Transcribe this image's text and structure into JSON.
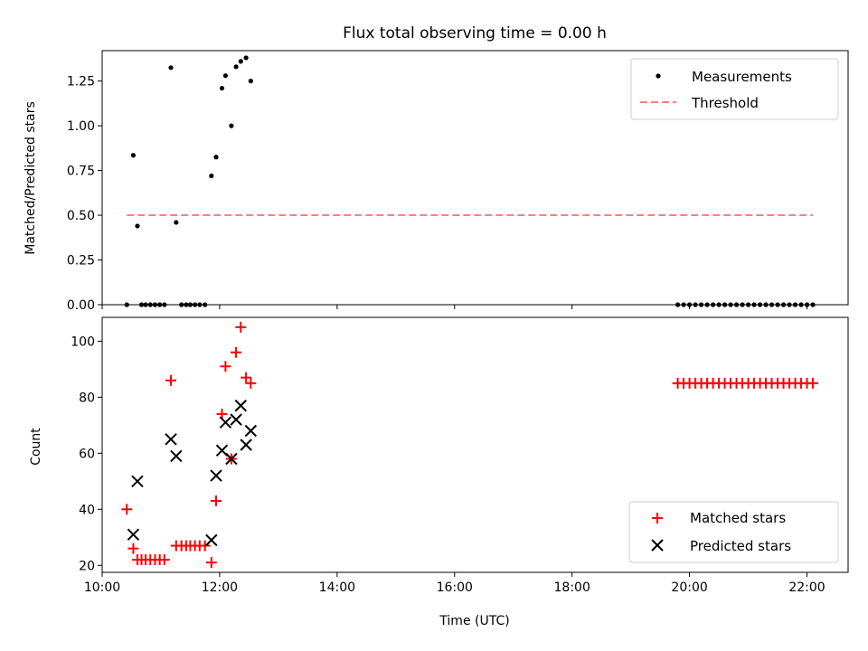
{
  "chart_data": [
    {
      "type": "scatter",
      "title": "Flux total observing time = 0.00 h",
      "xlabel": "",
      "ylabel": "Matched/Predicted stars",
      "xlim_hours": [
        10.0,
        22.7
      ],
      "ylim": [
        0,
        1.42
      ],
      "yticks": [
        0.0,
        0.25,
        0.5,
        0.75,
        1.0,
        1.25
      ],
      "ytick_labels": [
        "0.00",
        "0.25",
        "0.50",
        "0.75",
        "1.00",
        "1.25"
      ],
      "grid": false,
      "legend_position": "top-right",
      "series": [
        {
          "name": "Measurements",
          "kind": "dot",
          "color": "#000000",
          "points": [
            [
              10.42,
              0.0
            ],
            [
              10.53,
              0.835
            ],
            [
              10.6,
              0.44
            ],
            [
              10.67,
              0.0
            ],
            [
              10.74,
              0.0
            ],
            [
              10.82,
              0.0
            ],
            [
              10.9,
              0.0
            ],
            [
              10.98,
              0.0
            ],
            [
              11.06,
              0.0
            ],
            [
              11.17,
              1.325
            ],
            [
              11.26,
              0.46
            ],
            [
              11.35,
              0.0
            ],
            [
              11.43,
              0.0
            ],
            [
              11.5,
              0.0
            ],
            [
              11.58,
              0.0
            ],
            [
              11.66,
              0.0
            ],
            [
              11.75,
              0.0
            ],
            [
              11.86,
              0.72
            ],
            [
              11.94,
              0.825
            ],
            [
              12.04,
              1.21
            ],
            [
              12.1,
              1.28
            ],
            [
              12.2,
              1.0
            ],
            [
              12.28,
              1.33
            ],
            [
              12.36,
              1.36
            ],
            [
              12.45,
              1.38
            ],
            [
              12.53,
              1.25
            ],
            [
              19.8,
              0.0
            ],
            [
              19.9,
              0.0
            ],
            [
              20.0,
              0.0
            ],
            [
              20.1,
              0.0
            ],
            [
              20.2,
              0.0
            ],
            [
              20.3,
              0.0
            ],
            [
              20.4,
              0.0
            ],
            [
              20.5,
              0.0
            ],
            [
              20.6,
              0.0
            ],
            [
              20.7,
              0.0
            ],
            [
              20.8,
              0.0
            ],
            [
              20.9,
              0.0
            ],
            [
              21.0,
              0.0
            ],
            [
              21.1,
              0.0
            ],
            [
              21.2,
              0.0
            ],
            [
              21.3,
              0.0
            ],
            [
              21.4,
              0.0
            ],
            [
              21.5,
              0.0
            ],
            [
              21.6,
              0.0
            ],
            [
              21.7,
              0.0
            ],
            [
              21.8,
              0.0
            ],
            [
              21.9,
              0.0
            ],
            [
              22.0,
              0.0
            ],
            [
              22.1,
              0.0
            ]
          ]
        },
        {
          "name": "Threshold",
          "kind": "dashed-line",
          "color": "#ff7f7f",
          "points": [
            [
              10.42,
              0.5
            ],
            [
              22.1,
              0.5
            ]
          ]
        }
      ]
    },
    {
      "type": "scatter",
      "title": "",
      "xlabel": "Time (UTC)",
      "ylabel": "Count",
      "xlim_hours": [
        10.0,
        22.7
      ],
      "ylim": [
        17.5,
        108.5
      ],
      "yticks": [
        20,
        40,
        60,
        80,
        100
      ],
      "ytick_labels": [
        "20",
        "40",
        "60",
        "80",
        "100"
      ],
      "xticks_hours": [
        10,
        12,
        14,
        16,
        18,
        20,
        22
      ],
      "xtick_labels": [
        "10:00",
        "12:00",
        "14:00",
        "16:00",
        "18:00",
        "20:00",
        "22:00"
      ],
      "grid": false,
      "legend_position": "bottom-right",
      "series": [
        {
          "name": "Matched stars",
          "kind": "plus",
          "color": "#ff0000",
          "points": [
            [
              10.42,
              40
            ],
            [
              10.53,
              26
            ],
            [
              10.6,
              22
            ],
            [
              10.67,
              22
            ],
            [
              10.74,
              22
            ],
            [
              10.82,
              22
            ],
            [
              10.9,
              22
            ],
            [
              10.98,
              22
            ],
            [
              11.06,
              22
            ],
            [
              11.17,
              86
            ],
            [
              11.26,
              27
            ],
            [
              11.35,
              27
            ],
            [
              11.43,
              27
            ],
            [
              11.5,
              27
            ],
            [
              11.58,
              27
            ],
            [
              11.66,
              27
            ],
            [
              11.75,
              27
            ],
            [
              11.86,
              21
            ],
            [
              11.94,
              43
            ],
            [
              12.04,
              74
            ],
            [
              12.1,
              91
            ],
            [
              12.2,
              58
            ],
            [
              12.28,
              96
            ],
            [
              12.36,
              105
            ],
            [
              12.45,
              87
            ],
            [
              12.53,
              85
            ],
            [
              19.8,
              85
            ],
            [
              19.9,
              85
            ],
            [
              20.0,
              85
            ],
            [
              20.1,
              85
            ],
            [
              20.2,
              85
            ],
            [
              20.3,
              85
            ],
            [
              20.4,
              85
            ],
            [
              20.5,
              85
            ],
            [
              20.6,
              85
            ],
            [
              20.7,
              85
            ],
            [
              20.8,
              85
            ],
            [
              20.9,
              85
            ],
            [
              21.0,
              85
            ],
            [
              21.1,
              85
            ],
            [
              21.2,
              85
            ],
            [
              21.3,
              85
            ],
            [
              21.4,
              85
            ],
            [
              21.5,
              85
            ],
            [
              21.6,
              85
            ],
            [
              21.7,
              85
            ],
            [
              21.8,
              85
            ],
            [
              21.9,
              85
            ],
            [
              22.0,
              85
            ],
            [
              22.1,
              85
            ]
          ]
        },
        {
          "name": "Predicted stars",
          "kind": "x",
          "color": "#000000",
          "points": [
            [
              10.53,
              31
            ],
            [
              10.6,
              50
            ],
            [
              11.17,
              65
            ],
            [
              11.26,
              59
            ],
            [
              11.86,
              29
            ],
            [
              11.94,
              52
            ],
            [
              12.04,
              61
            ],
            [
              12.1,
              71
            ],
            [
              12.2,
              58
            ],
            [
              12.28,
              72
            ],
            [
              12.36,
              77
            ],
            [
              12.45,
              63
            ],
            [
              12.53,
              68
            ]
          ]
        }
      ]
    }
  ]
}
